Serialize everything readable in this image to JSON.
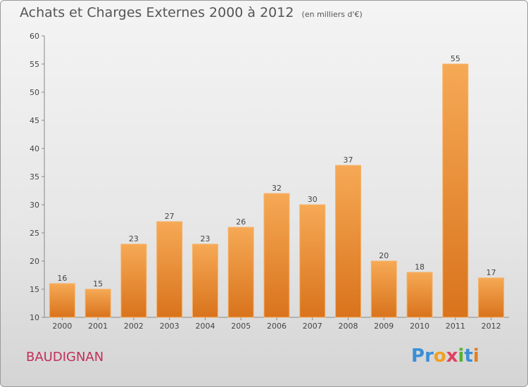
{
  "header": {
    "title": "Achats et Charges Externes 2000 à 2012",
    "unit": "(en milliers d'€)"
  },
  "footer": {
    "town": "BAUDIGNAN",
    "logo_letters": [
      {
        "ch": "P",
        "color": "#3a8fd6"
      },
      {
        "ch": "r",
        "color": "#3a8fd6"
      },
      {
        "ch": "o",
        "color": "#f0a020"
      },
      {
        "ch": "x",
        "color": "#e04060"
      },
      {
        "ch": "i",
        "color": "#58b030"
      },
      {
        "ch": "t",
        "color": "#3a8fd6"
      },
      {
        "ch": "i",
        "color": "#e08020"
      }
    ]
  },
  "colors": {
    "bar_top": "#f6a955",
    "bar_bottom": "#d9731c",
    "bar_edge": "#f7b36a"
  },
  "chart_data": {
    "type": "bar",
    "title": "Achats et Charges Externes 2000 à 2012",
    "categories": [
      "2000",
      "2001",
      "2002",
      "2003",
      "2004",
      "2005",
      "2006",
      "2007",
      "2008",
      "2009",
      "2010",
      "2011",
      "2012"
    ],
    "values": [
      16,
      15,
      23,
      27,
      23,
      26,
      32,
      30,
      37,
      20,
      18,
      55,
      17
    ],
    "ylim": [
      10,
      60
    ],
    "yticks": [
      10,
      15,
      20,
      25,
      30,
      35,
      40,
      45,
      50,
      55,
      60
    ],
    "grid": false,
    "legend": "none"
  }
}
